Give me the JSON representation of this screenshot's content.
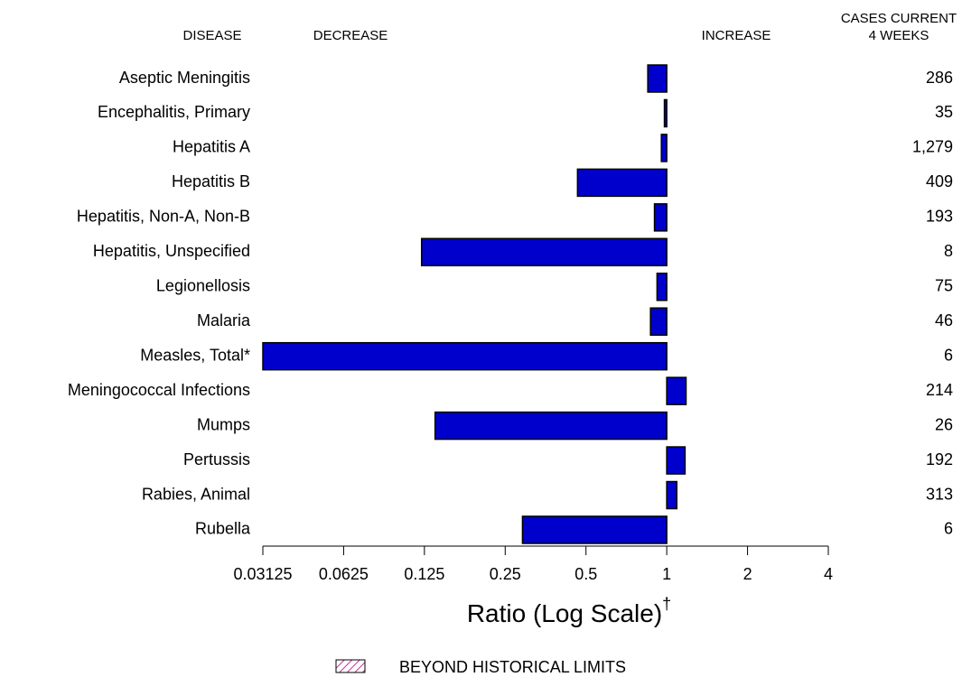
{
  "chart_data": {
    "type": "bar",
    "orientation": "horizontal",
    "log_scale": true,
    "headers": {
      "disease": "DISEASE",
      "decrease": "DECREASE",
      "increase": "INCREASE",
      "cases": [
        "CASES CURRENT",
        "4 WEEKS"
      ]
    },
    "categories": [
      "Aseptic Meningitis",
      "Encephalitis, Primary",
      "Hepatitis A",
      "Hepatitis B",
      "Hepatitis, Non-A, Non-B",
      "Hepatitis, Unspecified",
      "Legionellosis",
      "Malaria",
      "Measles, Total*",
      "Meningococcal Infections",
      "Mumps",
      "Pertussis",
      "Rabies, Animal",
      "Rubella"
    ],
    "values": [
      0.85,
      0.98,
      0.955,
      0.465,
      0.9,
      0.122,
      0.92,
      0.87,
      0.03125,
      1.18,
      0.137,
      1.17,
      1.09,
      0.29
    ],
    "cases": [
      "286",
      "35",
      "1,279",
      "409",
      "193",
      "8",
      "75",
      "46",
      "6",
      "214",
      "26",
      "192",
      "313",
      "6"
    ],
    "color": "#0000cc",
    "xlim": [
      0.03125,
      4
    ],
    "xticks": [
      0.03125,
      0.0625,
      0.125,
      0.25,
      0.5,
      1,
      2,
      4
    ],
    "xlabel": "Ratio (Log Scale)",
    "xlabel_mark": "†",
    "legend": {
      "label": "BEYOND HISTORICAL LIMITS",
      "color": "#cc3399",
      "position": "bottom"
    }
  }
}
